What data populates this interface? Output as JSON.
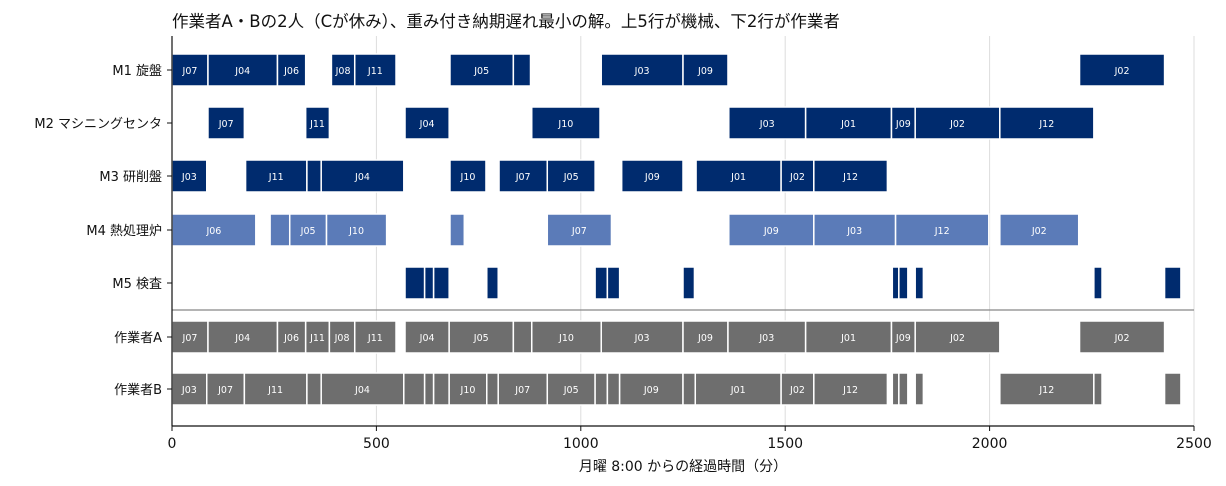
{
  "chart_data": {
    "type": "gantt",
    "title": "作業者A・Bの2人（Cが休み）、重み付き納期遅れ最小の解。上5行が機械、下2行が作業者",
    "xlabel": "月曜 8:00 からの経過時間（分）",
    "xlim": [
      0,
      2500
    ],
    "xticks": [
      0,
      500,
      1000,
      1500,
      2000,
      2500
    ],
    "grid": "vertical",
    "colors": {
      "machine_dark": "#002b6e",
      "machine_light": "#5b7bb8",
      "worker": "#6e6e6e"
    },
    "rows": [
      {
        "label": "M1 旋盤",
        "color": "#002b6e",
        "tasks": [
          {
            "start": 0,
            "end": 88,
            "job": "J07"
          },
          {
            "start": 88,
            "end": 258,
            "job": "J04"
          },
          {
            "start": 258,
            "end": 327,
            "job": "J06"
          },
          {
            "start": 390,
            "end": 447,
            "job": "J08"
          },
          {
            "start": 447,
            "end": 548,
            "job": "J11"
          },
          {
            "start": 680,
            "end": 835,
            "job": "J05"
          },
          {
            "start": 835,
            "end": 877,
            "job": ""
          },
          {
            "start": 1050,
            "end": 1250,
            "job": "J03"
          },
          {
            "start": 1250,
            "end": 1360,
            "job": "J09"
          },
          {
            "start": 2220,
            "end": 2428,
            "job": "J02"
          }
        ]
      },
      {
        "label": "M2 マシニングセンタ",
        "color": "#002b6e",
        "tasks": [
          {
            "start": 88,
            "end": 177,
            "job": "J07"
          },
          {
            "start": 327,
            "end": 385,
            "job": "J11"
          },
          {
            "start": 570,
            "end": 678,
            "job": "J04"
          },
          {
            "start": 880,
            "end": 1047,
            "job": "J10"
          },
          {
            "start": 1362,
            "end": 1550,
            "job": "J03"
          },
          {
            "start": 1550,
            "end": 1760,
            "job": "J01"
          },
          {
            "start": 1760,
            "end": 1818,
            "job": "J09"
          },
          {
            "start": 1818,
            "end": 2025,
            "job": "J02"
          },
          {
            "start": 2025,
            "end": 2255,
            "job": "J12"
          }
        ]
      },
      {
        "label": "M3 研削盤",
        "color": "#002b6e",
        "tasks": [
          {
            "start": 0,
            "end": 85,
            "job": "J03"
          },
          {
            "start": 180,
            "end": 330,
            "job": "J11"
          },
          {
            "start": 330,
            "end": 365,
            "job": ""
          },
          {
            "start": 365,
            "end": 567,
            "job": "J04"
          },
          {
            "start": 680,
            "end": 768,
            "job": "J10"
          },
          {
            "start": 800,
            "end": 918,
            "job": "J07"
          },
          {
            "start": 918,
            "end": 1035,
            "job": "J05"
          },
          {
            "start": 1100,
            "end": 1250,
            "job": "J09"
          },
          {
            "start": 1282,
            "end": 1490,
            "job": "J01"
          },
          {
            "start": 1490,
            "end": 1570,
            "job": "J02"
          },
          {
            "start": 1570,
            "end": 1750,
            "job": "J12"
          }
        ]
      },
      {
        "label": "M4 熱処理炉",
        "color": "#5b7bb8",
        "tasks": [
          {
            "start": 0,
            "end": 205,
            "job": "J06"
          },
          {
            "start": 240,
            "end": 288,
            "job": ""
          },
          {
            "start": 288,
            "end": 378,
            "job": "J05"
          },
          {
            "start": 378,
            "end": 525,
            "job": "J10"
          },
          {
            "start": 680,
            "end": 715,
            "job": ""
          },
          {
            "start": 918,
            "end": 1075,
            "job": "J07"
          },
          {
            "start": 1362,
            "end": 1570,
            "job": "J09"
          },
          {
            "start": 1570,
            "end": 1770,
            "job": "J03"
          },
          {
            "start": 1770,
            "end": 1998,
            "job": "J12"
          },
          {
            "start": 2025,
            "end": 2218,
            "job": "J02"
          }
        ]
      },
      {
        "label": "M5 検査",
        "color": "#002b6e",
        "tasks": [
          {
            "start": 570,
            "end": 618,
            "job": ""
          },
          {
            "start": 618,
            "end": 640,
            "job": ""
          },
          {
            "start": 640,
            "end": 678,
            "job": ""
          },
          {
            "start": 770,
            "end": 798,
            "job": ""
          },
          {
            "start": 1035,
            "end": 1065,
            "job": ""
          },
          {
            "start": 1065,
            "end": 1095,
            "job": ""
          },
          {
            "start": 1250,
            "end": 1278,
            "job": ""
          },
          {
            "start": 1762,
            "end": 1778,
            "job": ""
          },
          {
            "start": 1778,
            "end": 1800,
            "job": ""
          },
          {
            "start": 1818,
            "end": 1838,
            "job": ""
          },
          {
            "start": 2255,
            "end": 2275,
            "job": ""
          },
          {
            "start": 2428,
            "end": 2468,
            "job": ""
          }
        ]
      },
      {
        "label": "作業者A",
        "color": "#6e6e6e",
        "tasks": [
          {
            "start": 0,
            "end": 88,
            "job": "J07"
          },
          {
            "start": 88,
            "end": 258,
            "job": "J04"
          },
          {
            "start": 258,
            "end": 327,
            "job": "J06"
          },
          {
            "start": 327,
            "end": 385,
            "job": "J11"
          },
          {
            "start": 385,
            "end": 447,
            "job": "J08"
          },
          {
            "start": 447,
            "end": 548,
            "job": "J11"
          },
          {
            "start": 570,
            "end": 678,
            "job": "J04"
          },
          {
            "start": 678,
            "end": 835,
            "job": "J05"
          },
          {
            "start": 835,
            "end": 880,
            "job": ""
          },
          {
            "start": 880,
            "end": 1050,
            "job": "J10"
          },
          {
            "start": 1050,
            "end": 1250,
            "job": "J03"
          },
          {
            "start": 1250,
            "end": 1360,
            "job": "J09"
          },
          {
            "start": 1360,
            "end": 1550,
            "job": "J03"
          },
          {
            "start": 1550,
            "end": 1760,
            "job": "J01"
          },
          {
            "start": 1760,
            "end": 1818,
            "job": "J09"
          },
          {
            "start": 1818,
            "end": 2025,
            "job": "J02"
          },
          {
            "start": 2220,
            "end": 2428,
            "job": "J02"
          }
        ]
      },
      {
        "label": "作業者B",
        "color": "#6e6e6e",
        "tasks": [
          {
            "start": 0,
            "end": 85,
            "job": "J03"
          },
          {
            "start": 85,
            "end": 177,
            "job": "J07"
          },
          {
            "start": 177,
            "end": 330,
            "job": "J11"
          },
          {
            "start": 330,
            "end": 365,
            "job": ""
          },
          {
            "start": 365,
            "end": 567,
            "job": "J04"
          },
          {
            "start": 567,
            "end": 618,
            "job": ""
          },
          {
            "start": 618,
            "end": 640,
            "job": ""
          },
          {
            "start": 640,
            "end": 678,
            "job": ""
          },
          {
            "start": 678,
            "end": 770,
            "job": "J10"
          },
          {
            "start": 770,
            "end": 798,
            "job": ""
          },
          {
            "start": 798,
            "end": 918,
            "job": "J07"
          },
          {
            "start": 918,
            "end": 1035,
            "job": "J05"
          },
          {
            "start": 1035,
            "end": 1065,
            "job": ""
          },
          {
            "start": 1065,
            "end": 1095,
            "job": ""
          },
          {
            "start": 1095,
            "end": 1250,
            "job": "J09"
          },
          {
            "start": 1250,
            "end": 1280,
            "job": ""
          },
          {
            "start": 1280,
            "end": 1490,
            "job": "J01"
          },
          {
            "start": 1490,
            "end": 1570,
            "job": "J02"
          },
          {
            "start": 1570,
            "end": 1750,
            "job": "J12"
          },
          {
            "start": 1762,
            "end": 1778,
            "job": ""
          },
          {
            "start": 1778,
            "end": 1800,
            "job": ""
          },
          {
            "start": 1818,
            "end": 1838,
            "job": ""
          },
          {
            "start": 2025,
            "end": 2255,
            "job": "J12"
          },
          {
            "start": 2255,
            "end": 2275,
            "job": ""
          },
          {
            "start": 2428,
            "end": 2468,
            "job": ""
          }
        ]
      }
    ]
  }
}
